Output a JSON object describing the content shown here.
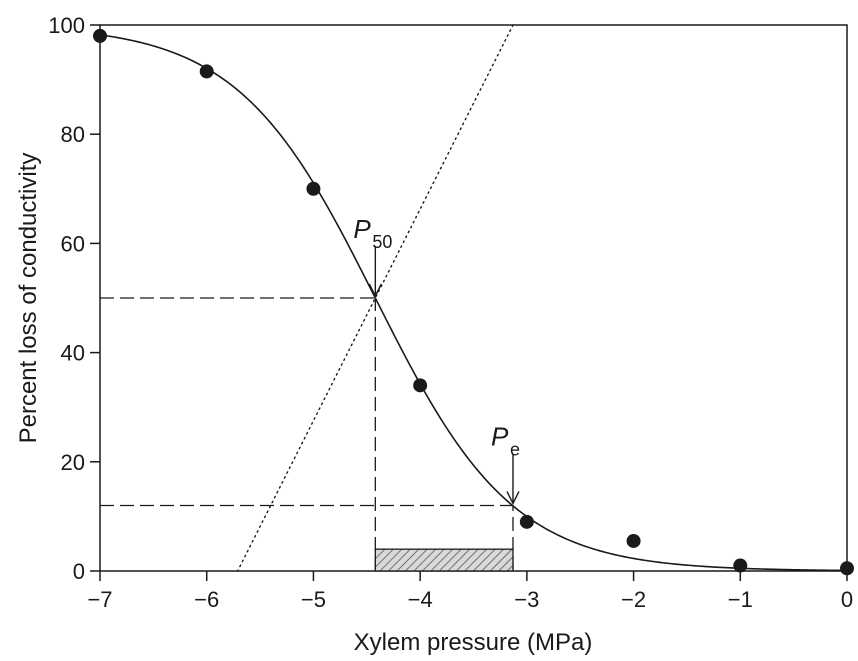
{
  "chart_data": {
    "type": "scatter",
    "xlabel": "Xylem pressure (MPa)",
    "ylabel": "Percent loss of conductivity",
    "xlim": [
      -7,
      0
    ],
    "ylim": [
      0,
      100
    ],
    "x_ticks": [
      "−7",
      "−6",
      "−5",
      "−4",
      "−3",
      "−2",
      "−1",
      "0"
    ],
    "y_ticks": [
      "0",
      "20",
      "40",
      "60",
      "80",
      "100"
    ],
    "grid": false,
    "series": [
      {
        "kind": "points",
        "x": [
          -7,
          -6,
          -5,
          -4,
          -3,
          -2,
          -1,
          0
        ],
        "y": [
          98,
          91.5,
          70,
          34,
          9,
          5.5,
          1,
          0.5
        ]
      },
      {
        "kind": "fitted-curve",
        "model": "sigmoid",
        "p50": -4.42,
        "slope": 1.55
      },
      {
        "kind": "tangent-at-p50",
        "style": "dotted"
      }
    ],
    "annotations": [
      {
        "label_main": "P",
        "label_sub": "50",
        "x": -4.42,
        "y": 50
      },
      {
        "label_main": "P",
        "label_sub": "e",
        "x": -3.13,
        "y": 12
      }
    ],
    "reference_lines": [
      {
        "style": "dashed",
        "x_from": -7,
        "x_to": -4.42,
        "y": 50
      },
      {
        "style": "dashed",
        "x_from": -7,
        "x_to": -3.13,
        "y": 12
      },
      {
        "style": "dashed",
        "x": -4.42,
        "y_from": 0,
        "y_to": 50
      },
      {
        "style": "dashed",
        "x": -3.13,
        "y_from": 0,
        "y_to": 12
      }
    ],
    "shaded_region": {
      "x_from": -4.42,
      "x_to": -3.13,
      "y_from": 0,
      "y_to": 4,
      "pattern": "hatched"
    }
  }
}
